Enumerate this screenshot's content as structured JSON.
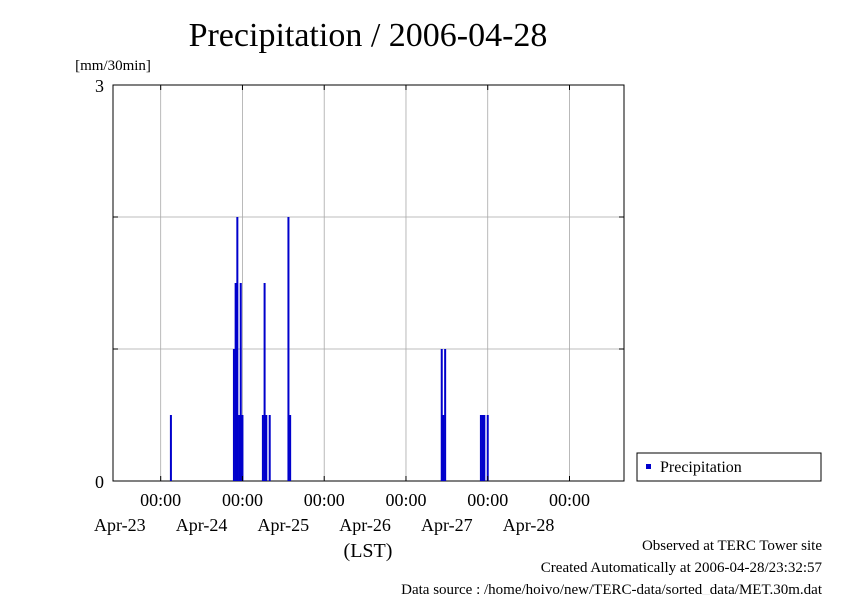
{
  "chart_data": {
    "type": "bar",
    "title": "Precipitation / 2006-04-28",
    "ylabel": "[mm/30min]",
    "xlabel": "(LST)",
    "ylim": [
      0,
      3
    ],
    "yticks": [
      "0",
      "3"
    ],
    "xlim": [
      "2006-04-22 10:00",
      "2006-04-28 16:00"
    ],
    "grid": true,
    "xticks": [
      {
        "time": "2006-04-23 00:00",
        "time_label": "00:00",
        "date_label": "Apr-23"
      },
      {
        "time": "2006-04-24 00:00",
        "time_label": "00:00",
        "date_label": "Apr-24"
      },
      {
        "time": "2006-04-25 00:00",
        "time_label": "00:00",
        "date_label": "Apr-25"
      },
      {
        "time": "2006-04-26 00:00",
        "time_label": "00:00",
        "date_label": "Apr-26"
      },
      {
        "time": "2006-04-27 00:00",
        "time_label": "00:00",
        "date_label": "Apr-27"
      },
      {
        "time": "2006-04-28 00:00",
        "time_label": "00:00",
        "date_label": "Apr-28"
      }
    ],
    "legend_position": "right",
    "series": [
      {
        "name": "Precipitation",
        "color": "#0000cc",
        "points": [
          {
            "time": "2006-04-23 03:00",
            "value": 0.5
          },
          {
            "time": "2006-04-23 21:30",
            "value": 1.0
          },
          {
            "time": "2006-04-23 22:00",
            "value": 1.5
          },
          {
            "time": "2006-04-23 22:30",
            "value": 2.0
          },
          {
            "time": "2006-04-23 23:00",
            "value": 0.5
          },
          {
            "time": "2006-04-23 23:30",
            "value": 1.5
          },
          {
            "time": "2006-04-24 00:00",
            "value": 0.5
          },
          {
            "time": "2006-04-24 06:00",
            "value": 0.5
          },
          {
            "time": "2006-04-24 06:30",
            "value": 1.5
          },
          {
            "time": "2006-04-24 07:00",
            "value": 0.5
          },
          {
            "time": "2006-04-24 08:00",
            "value": 0.5
          },
          {
            "time": "2006-04-24 13:30",
            "value": 2.0
          },
          {
            "time": "2006-04-24 14:00",
            "value": 0.5
          },
          {
            "time": "2006-04-26 10:30",
            "value": 1.0
          },
          {
            "time": "2006-04-26 11:00",
            "value": 0.5
          },
          {
            "time": "2006-04-26 11:30",
            "value": 1.0
          },
          {
            "time": "2006-04-26 22:00",
            "value": 0.5
          },
          {
            "time": "2006-04-26 22:30",
            "value": 0.5
          },
          {
            "time": "2006-04-26 23:00",
            "value": 0.5
          },
          {
            "time": "2006-04-27 00:00",
            "value": 0.5
          }
        ]
      }
    ]
  },
  "footer": {
    "observed": "Observed at TERC Tower site",
    "created": "Created Automatically at 2006-04-28/23:32:57",
    "source": "Data source : /home/hoivo/new/TERC-data/sorted_data/MET.30m.dat"
  }
}
